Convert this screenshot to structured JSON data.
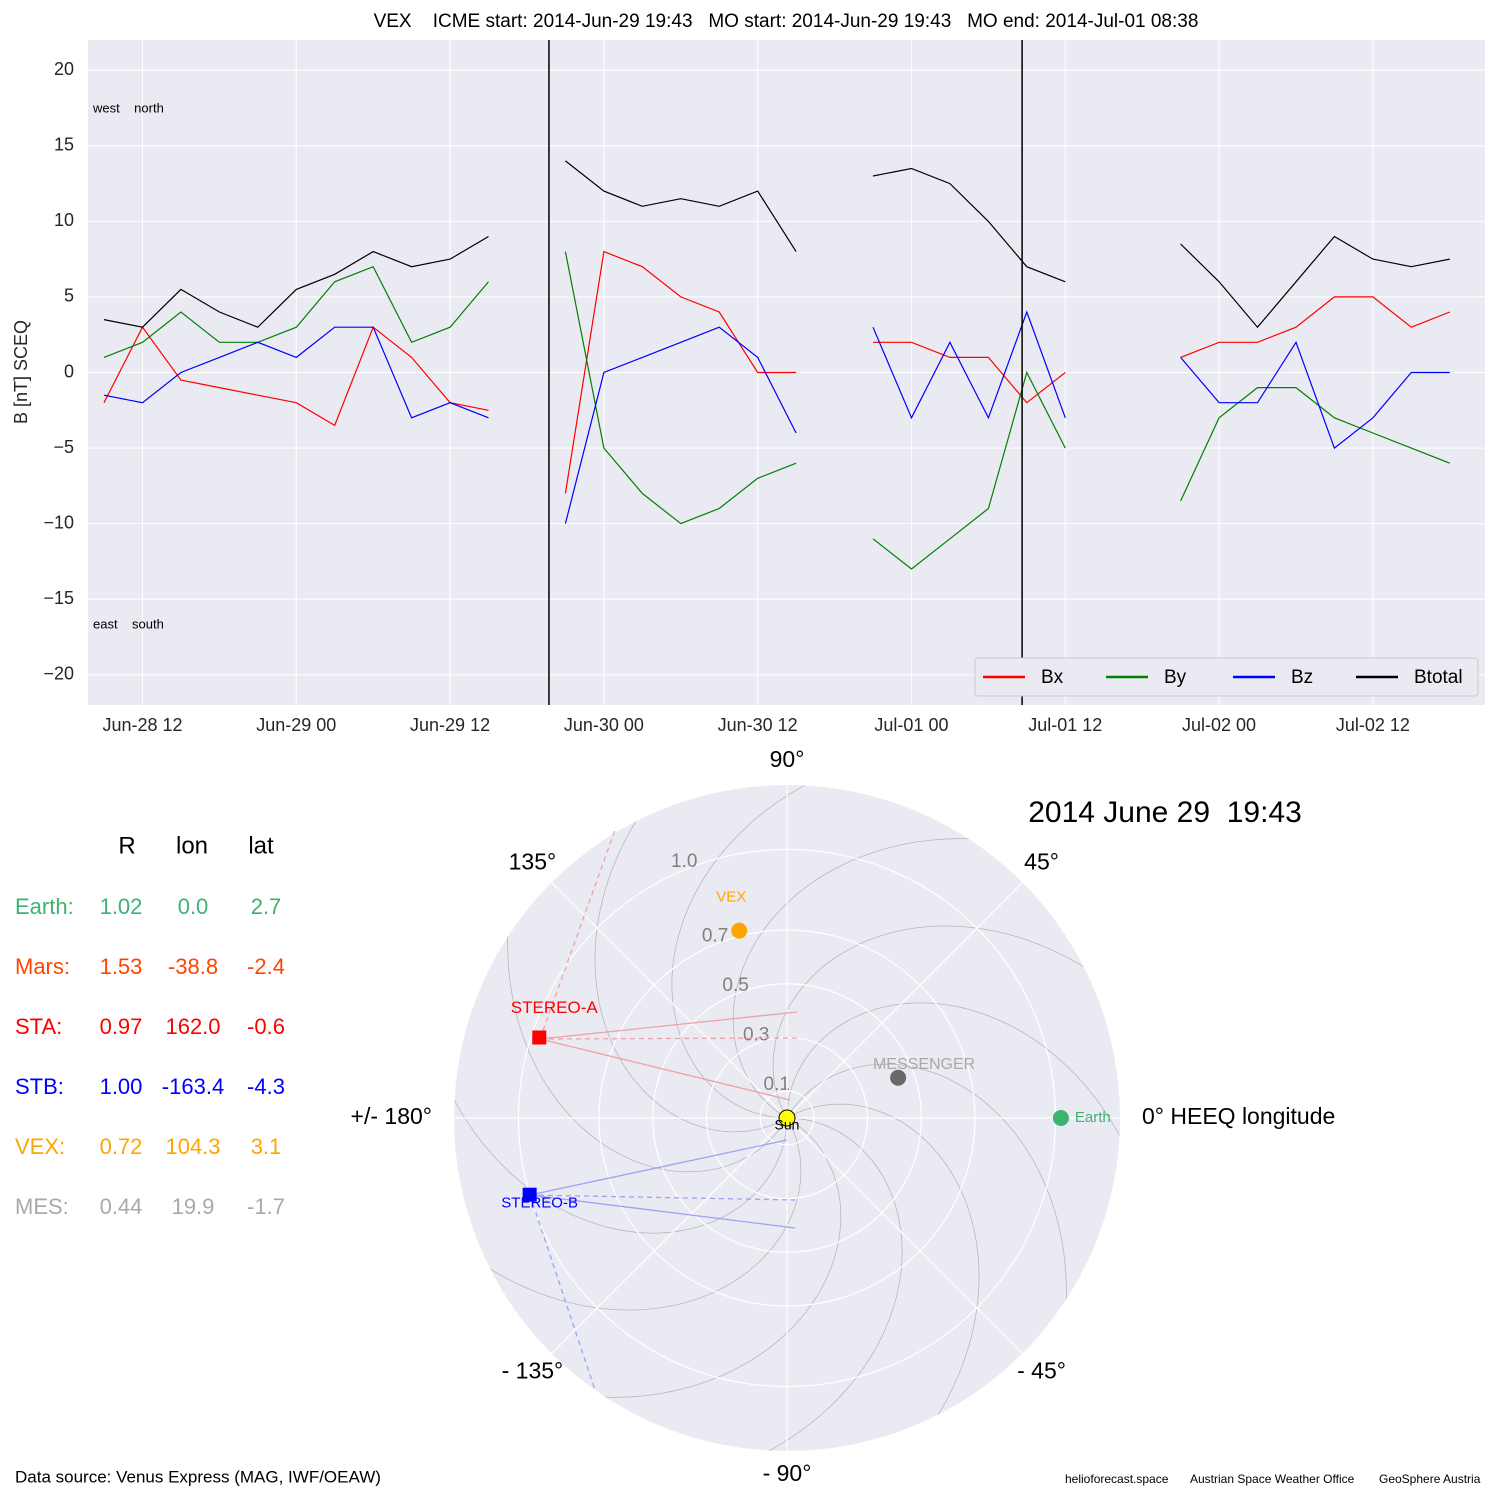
{
  "chart_data": [
    {
      "type": "line",
      "title": "VEX    ICME start: 2014-Jun-29 19:43   MO start: 2014-Jun-29 19:43   MO end: 2014-Jul-01 08:38",
      "ylabel": "B [nT] SCEQ",
      "annotations": [
        "west    north",
        "east    south"
      ],
      "x": [
        "Jun-28 09:00",
        "Jun-28 12:00",
        "Jun-28 15:00",
        "Jun-28 18:00",
        "Jun-28 21:00",
        "Jun-29 00:00",
        "Jun-29 03:00",
        "Jun-29 06:00",
        "Jun-29 09:00",
        "Jun-29 12:00",
        "Jun-29 15:00",
        "Jun-29 18:00",
        "Jun-29 21:00",
        "Jun-30 00:00",
        "Jun-30 03:00",
        "Jun-30 06:00",
        "Jun-30 09:00",
        "Jun-30 12:00",
        "Jun-30 15:00",
        "Jun-30 18:00",
        "Jun-30 21:00",
        "Jul-01 00:00",
        "Jul-01 03:00",
        "Jul-01 06:00",
        "Jul-01 09:00",
        "Jul-01 12:00",
        "Jul-01 15:00",
        "Jul-01 18:00",
        "Jul-01 21:00",
        "Jul-02 00:00",
        "Jul-02 03:00",
        "Jul-02 06:00",
        "Jul-02 09:00",
        "Jul-02 12:00",
        "Jul-02 15:00",
        "Jul-02 18:00"
      ],
      "series": [
        {
          "name": "Bx",
          "color": "#ff0000",
          "values": [
            -2,
            3,
            -0.5,
            -1,
            -1.5,
            -2,
            -3.5,
            3,
            1,
            -2,
            -2.5,
            null,
            -8,
            8,
            7,
            5,
            4,
            0,
            0,
            null,
            2,
            2,
            1,
            1,
            -2,
            0,
            null,
            null,
            1,
            2,
            2,
            3,
            5,
            5,
            3,
            4
          ]
        },
        {
          "name": "By",
          "color": "#008000",
          "values": [
            1,
            2,
            4,
            2,
            2,
            3,
            6,
            7,
            2,
            3,
            6,
            null,
            8,
            -5,
            -8,
            -10,
            -9,
            -7,
            -6,
            null,
            -11,
            -13,
            -11,
            -9,
            0,
            -5,
            null,
            null,
            -8.5,
            -3,
            -1,
            -1,
            -3,
            -4,
            -5,
            -6
          ]
        },
        {
          "name": "Bz",
          "color": "#0000ff",
          "values": [
            -1.5,
            -2,
            0,
            1,
            2,
            1,
            3,
            3,
            -3,
            -2,
            -3,
            null,
            -10,
            0,
            1,
            2,
            3,
            1,
            -4,
            null,
            3,
            -3,
            2,
            -3,
            4,
            -3,
            null,
            null,
            1,
            -2,
            -2,
            2,
            -5,
            -3,
            0,
            0
          ]
        },
        {
          "name": "Btotal",
          "color": "#000000",
          "values": [
            3.5,
            3,
            5.5,
            4,
            3,
            5.5,
            6.5,
            8,
            7,
            7.5,
            9,
            null,
            14,
            12,
            11,
            11.5,
            11,
            12,
            8,
            null,
            13,
            13.5,
            12.5,
            10,
            7,
            6,
            null,
            null,
            8.5,
            6,
            3,
            6,
            9,
            7.5,
            7,
            7.5
          ]
        }
      ],
      "event_lines": [
        "Jun-29 19:43",
        "Jul-01 08:38"
      ],
      "xlim": [
        "Jun-28 07:45",
        "Jul-02 20:45"
      ],
      "xticks": [
        {
          "value": "Jun-28 12:00",
          "label": "Jun-28 12"
        },
        {
          "value": "Jun-29 00:00",
          "label": "Jun-29 00"
        },
        {
          "value": "Jun-29 12:00",
          "label": "Jun-29 12"
        },
        {
          "value": "Jun-30 00:00",
          "label": "Jun-30 00"
        },
        {
          "value": "Jun-30 12:00",
          "label": "Jun-30 12"
        },
        {
          "value": "Jul-01 00:00",
          "label": "Jul-01 00"
        },
        {
          "value": "Jul-01 12:00",
          "label": "Jul-01 12"
        },
        {
          "value": "Jul-02 00:00",
          "label": "Jul-02 00"
        },
        {
          "value": "Jul-02 12:00",
          "label": "Jul-02 12"
        }
      ],
      "ylim": [
        -22,
        22
      ],
      "yticks": [
        {
          "value": -20,
          "label": "−20"
        },
        {
          "value": -15,
          "label": "−15"
        },
        {
          "value": -10,
          "label": "−10"
        },
        {
          "value": -5,
          "label": "−5"
        },
        0,
        5,
        10,
        15,
        20
      ],
      "grid": true,
      "legend": "lower right"
    },
    {
      "type": "polar",
      "date_label": "2014 June 29  19:43",
      "rlim": [
        0,
        1.24
      ],
      "rticks": [
        0.1,
        0.3,
        0.5,
        0.7,
        {
          "value": 1,
          "label": "1.0"
        }
      ],
      "thetaticks": [
        {
          "value": 0,
          "label": "0° HEEQ longitude"
        },
        {
          "value": 45,
          "label": "45°"
        },
        {
          "value": 90,
          "label": "90°"
        },
        {
          "value": 135,
          "label": "135°"
        },
        {
          "value": 180,
          "label": "+/- 180°"
        },
        {
          "value": -135,
          "label": "- 135°"
        },
        {
          "value": -90,
          "label": "- 90°"
        },
        {
          "value": -45,
          "label": "- 45°"
        }
      ],
      "points": [
        {
          "name": "Sun",
          "r": 0,
          "lon": 0,
          "color": "#ffff00",
          "label_color": "#000000",
          "marker": "circle"
        },
        {
          "name": "Earth",
          "r": 1.02,
          "lon": 0,
          "color": "#3cb371",
          "label_color": "#3cb371",
          "marker": "circle"
        },
        {
          "name": "STEREO-A",
          "r": 0.97,
          "lon": 162,
          "color": "#ff0000",
          "label_color": "#ff0000",
          "marker": "square"
        },
        {
          "name": "STEREO-B",
          "r": 1.0,
          "lon": -163.4,
          "color": "#0000ff",
          "label_color": "#0000ff",
          "marker": "square"
        },
        {
          "name": "VEX",
          "r": 0.72,
          "lon": 104.3,
          "color": "#ffa500",
          "label_color": "#ffa500",
          "marker": "circle"
        },
        {
          "name": "MESSENGER",
          "r": 0.44,
          "lon": 19.9,
          "color": "#696969",
          "label_color": "#a9a9a9",
          "marker": "circle"
        }
      ]
    }
  ],
  "table": {
    "header": [
      "R",
      "lon",
      "lat"
    ],
    "rows": [
      [
        "Earth:",
        "1.02",
        "0.0",
        "2.7"
      ],
      [
        "Mars:",
        "1.53",
        "-38.8",
        "-2.4"
      ],
      [
        "STA:",
        "0.97",
        "162.0",
        "-0.6"
      ],
      [
        "STB:",
        "1.00",
        "-163.4",
        "-4.3"
      ],
      [
        "VEX:",
        "0.72",
        "104.3",
        "3.1"
      ],
      [
        "MES:",
        "0.44",
        "19.9",
        "-1.7"
      ]
    ],
    "colors": [
      "#3cb371",
      "#ff4500",
      "#ff0000",
      "#0000ff",
      "#ffa500",
      "#a9a9a9"
    ]
  },
  "footer": {
    "source": "Data source: Venus Express (MAG, IWF/OEAW)",
    "credits": [
      "helioforecast.space",
      "Austrian Space Weather Office",
      "GeoSphere Austria"
    ]
  }
}
